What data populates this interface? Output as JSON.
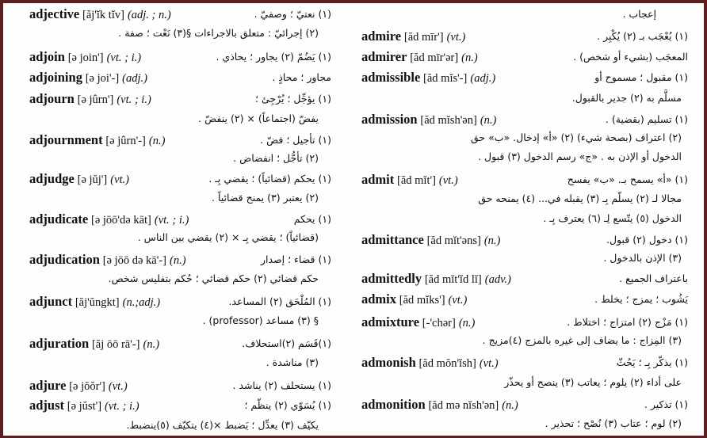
{
  "left_column": {
    "entries": [
      {
        "headword": "adjective",
        "pron": "[ăj'ĭk tĭv]",
        "pos": "(adj. ; n.)",
        "ar": [
          "(١) نعتيّ ؛ وصفيّ .",
          "(٢) إجرائيّ : متعلق بالاجراءات §(٣) نَعْت ؛ صفة ."
        ]
      },
      {
        "headword": "adjoin",
        "pron": "[ə join']",
        "pos": "(vt. ; i.)",
        "ar": [
          "(١) يَضُمّ (٢) يجاور ؛ يحاذي ."
        ]
      },
      {
        "headword": "adjoining",
        "pron": "[ə joi'-]",
        "pos": "(adj.)",
        "ar": [
          "مجاور ؛ محاذٍ ."
        ]
      },
      {
        "headword": "adjourn",
        "pron": "[ə jûrn']",
        "pos": "(vt. ; i.)",
        "ar": [
          "(١) يؤجِّل ؛ يُرْجِئ ؛",
          "يفضّ (اجتماعاً) × (٢) ينفضّ ."
        ]
      },
      {
        "headword": "adjournment",
        "pron": "[ə jûrn'-]",
        "pos": "(n.)",
        "ar": [
          "(١) تأجيل ؛ فضّ .",
          "(٢) تأجُّل ؛ انفضاض ."
        ]
      },
      {
        "headword": "adjudge",
        "pron": "[ə jŭj']",
        "pos": "(vt.)",
        "ar": [
          "(١) يحكم (قضائياً) ؛ يقضي بِـ .",
          "(٢) يعتبر (٣) يمنح قضائياً ."
        ]
      },
      {
        "headword": "adjudicate",
        "pron": "[ə jōō'də kāt]",
        "pos": "(vt. ; i.)",
        "ar": [
          "(١) يحكم",
          "(قضائياً) ؛ يقضي بِـ × (٢) يقضي بين الناس ."
        ]
      },
      {
        "headword": "adjudication",
        "pron": "[ə jōō də kā'-]",
        "pos": "(n.)",
        "ar": [
          "(١) قضاء ؛ إصدار",
          "حكم قضائي (٢) حكم قضائي ؛ حُكم بتفليس شخص."
        ]
      },
      {
        "headword": "adjunct",
        "pron": "[ăj'ŭngkt]",
        "pos": "(n.;adj.)",
        "ar": [
          "(١) المُلْحَق (٢) المساعد.",
          "§ (٣) مساعد (professor) ."
        ]
      },
      {
        "headword": "adjuration",
        "pron": "[ăj ōō rā'-]",
        "pos": "(n.)",
        "ar": [
          "(١)قَسَم (٢)استحلاف.",
          "(٣) مناشدة ."
        ]
      },
      {
        "headword": "adjure",
        "pron": "[ə jŏŏr']",
        "pos": "(vt.)",
        "ar": [
          "(١) يستحلف (٢) يناشد ."
        ]
      },
      {
        "headword": "adjust",
        "pron": "[ə jŭst']",
        "pos": "(vt. ; i.)",
        "ar": [
          "(١) يُسَوّي (٢) ينظّم ؛",
          "يكيّف (٣) يعدِّل ؛ يَضبط ×(٤) يتكيّف (٥)ينضبط."
        ]
      }
    ]
  },
  "right_column": {
    "carryover": "إعجاب .",
    "entries": [
      {
        "headword": "admire",
        "pron": "[ăd mīr']",
        "pos": "(vt.)",
        "ar": [
          "(١) يُعْجَب بـ (٢) يُكْبِر ."
        ]
      },
      {
        "headword": "admirer",
        "pron": "[ăd mīr'ər]",
        "pos": "(n.)",
        "ar": [
          "المعجَب (بشيء أو شخص) ."
        ]
      },
      {
        "headword": "admissible",
        "pron": "[ăd mĭs'-]",
        "pos": "(adj.)",
        "ar": [
          "(١) مقبول ؛ مسموح أو",
          "مسلَّم به (٢) جدير بالقبول."
        ]
      },
      {
        "headword": "admission",
        "pron": "[ăd mĭsh'ən]",
        "pos": "(n.)",
        "ar": [
          "(١) تسليم (بقضية) .",
          "(٢) اعتراف (بصحة شيء) (٢) «أ» إدخال. «ب» حق",
          "الدخول أو الإذن به . «ج» رسم الدخول (٣) قبول ."
        ]
      },
      {
        "headword": "admit",
        "pron": "[ăd mĭt']",
        "pos": "(vt.)",
        "ar": [
          "(١) «أ» يسمح بـ. «ب» يفسح",
          "مجالا لـ (٢) يسلّم بِـ (٣) يقبله في... (٤) يمنحه حق",
          "الدخول (٥) يتّسع لِـ (٦) يعترف بِـ ."
        ]
      },
      {
        "headword": "admittance",
        "pron": "[ăd mĭt'əns]",
        "pos": "(n.)",
        "ar": [
          "(١) دخول (٢) قبول.",
          "(٣) الإذن بالدخول ."
        ]
      },
      {
        "headword": "admittedly",
        "pron": "[ăd mĭt'ĭd lĭ]",
        "pos": "(adv.)",
        "ar": [
          "باعتراف الجميع ."
        ]
      },
      {
        "headword": "admix",
        "pron": "[ăd mĭks']",
        "pos": "(vt.)",
        "ar": [
          "يَشُوب ؛ يمزج ؛ يخلط ."
        ]
      },
      {
        "headword": "admixture",
        "pron": "[-'chər]",
        "pos": "(n.)",
        "ar": [
          "(١) مَزْج (٢) امتزاج ؛ اختلاط .",
          "(٣) المِزاج : ما يضاف إلى غيره بالمزج (٤)مزيج ."
        ]
      },
      {
        "headword": "admonish",
        "pron": "[ăd mŏn'ĭsh]",
        "pos": "(vt.)",
        "ar": [
          "(١) يذكّر بِـ ؛ يَحُثّ",
          "على أداء (٢) يلوم ؛ يعاتب (٣) ينصح أو يحذّر"
        ]
      },
      {
        "headword": "admonition",
        "pron": "[ăd mə nĭsh'ən]",
        "pos": "(n.)",
        "ar": [
          "(١) تذكير .",
          "(٢) لوم ؛ عتاب (٣) نُصْح ؛ تحذير ."
        ]
      }
    ]
  }
}
